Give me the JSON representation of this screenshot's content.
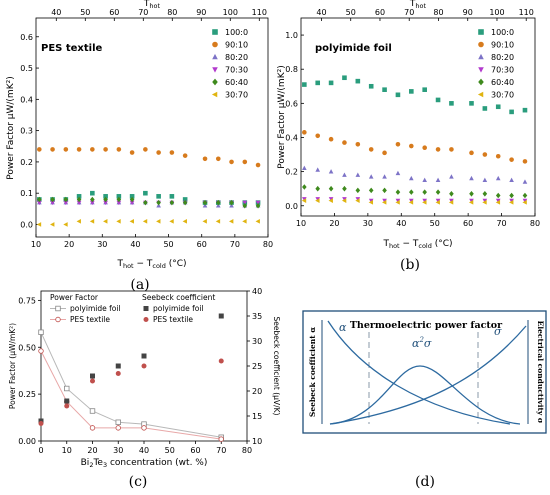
{
  "colors": {
    "s100": "#2a9d7d",
    "s90": "#d77b1d",
    "s80": "#7d73c7",
    "s70": "#b23acd",
    "s60": "#3f8a1d",
    "s30": "#e0b410",
    "pes_line": "#e8a8a8",
    "pes_marker": "#c0504d",
    "pi_line": "#b8b8b8",
    "pi_marker": "#444444",
    "diag_curve": "#2d6aa0",
    "diag_border": "#1f4e79"
  },
  "captions": [
    "(a)",
    "(b)",
    "(c)",
    "(d)"
  ],
  "chart_data": [
    {
      "type": "scatter",
      "panel": "a",
      "title": "PES textile",
      "xlabel": "T_hot − T_cold (°C)",
      "xlabel_parts": {
        "main": "T",
        "sub1": "hot",
        "mid": " − T",
        "sub2": "cold",
        "tail": " (°C)"
      },
      "top_xlabel_parts": {
        "main": "T",
        "sub": "hot"
      },
      "ylabel": "Power Factor μW/(mK²)",
      "xlim": [
        10,
        80
      ],
      "ylim": [
        -0.04,
        0.66
      ],
      "x_ticks": [
        10,
        20,
        30,
        40,
        50,
        60,
        70,
        80
      ],
      "y_ticks": [
        0.0,
        0.1,
        0.2,
        0.3,
        0.4,
        0.5,
        0.6
      ],
      "y_tick_labels": [
        "0.0",
        "0.1",
        "0.2",
        "0.3",
        "0.4",
        "0.5",
        "0.6"
      ],
      "top_ticks": [
        40,
        50,
        60,
        70,
        80,
        90,
        100,
        110
      ],
      "top_xlim": [
        33,
        113
      ],
      "legend_position": "top-right",
      "series": [
        {
          "name": "100:0",
          "marker": "square",
          "color_key": "s100",
          "x": [
            11,
            15,
            19,
            23,
            27,
            31,
            35,
            39,
            43,
            47,
            51,
            55,
            61,
            65,
            69,
            73,
            77
          ],
          "y": [
            0.08,
            0.08,
            0.08,
            0.09,
            0.1,
            0.09,
            0.09,
            0.09,
            0.1,
            0.09,
            0.09,
            0.08,
            0.07,
            0.07,
            0.07,
            0.07,
            0.07
          ]
        },
        {
          "name": "90:10",
          "marker": "circle",
          "color_key": "s90",
          "x": [
            11,
            15,
            19,
            23,
            27,
            31,
            35,
            39,
            43,
            47,
            51,
            55,
            61,
            65,
            69,
            73,
            77
          ],
          "y": [
            0.24,
            0.24,
            0.24,
            0.24,
            0.24,
            0.24,
            0.24,
            0.23,
            0.24,
            0.23,
            0.23,
            0.22,
            0.21,
            0.21,
            0.2,
            0.2,
            0.19
          ]
        },
        {
          "name": "80:20",
          "marker": "triangle-up",
          "color_key": "s80",
          "x": [
            11,
            15,
            19,
            23,
            27,
            31,
            35,
            39,
            43,
            47,
            51,
            55,
            61,
            65,
            69,
            73,
            77
          ],
          "y": [
            0.07,
            0.07,
            0.07,
            0.07,
            0.07,
            0.07,
            0.07,
            0.07,
            0.07,
            0.06,
            0.07,
            0.07,
            0.06,
            0.06,
            0.06,
            0.06,
            0.06
          ]
        },
        {
          "name": "70:30",
          "marker": "triangle-down",
          "color_key": "s70",
          "x": [
            11,
            15,
            19,
            23,
            27,
            31,
            35,
            39,
            43,
            47,
            51,
            55,
            61,
            65,
            69,
            73,
            77
          ],
          "y": [
            0.07,
            0.07,
            0.07,
            0.07,
            0.07,
            0.07,
            0.07,
            0.07,
            0.07,
            0.07,
            0.07,
            0.07,
            0.07,
            0.07,
            0.07,
            0.07,
            0.07
          ]
        },
        {
          "name": "60:40",
          "marker": "diamond",
          "color_key": "s60",
          "x": [
            11,
            15,
            19,
            23,
            27,
            31,
            35,
            39,
            43,
            47,
            51,
            55,
            61,
            65,
            69,
            73,
            77
          ],
          "y": [
            0.08,
            0.08,
            0.08,
            0.08,
            0.08,
            0.08,
            0.08,
            0.08,
            0.07,
            0.07,
            0.07,
            0.07,
            0.07,
            0.07,
            0.07,
            0.06,
            0.06
          ]
        },
        {
          "name": "30:70",
          "marker": "triangle-left",
          "color_key": "s30",
          "x": [
            11,
            15,
            19,
            23,
            27,
            31,
            35,
            39,
            43,
            47,
            51,
            55,
            61,
            65,
            69,
            73,
            77
          ],
          "y": [
            0.0,
            0.0,
            0.0,
            0.01,
            0.01,
            0.01,
            0.01,
            0.01,
            0.01,
            0.01,
            0.01,
            0.01,
            0.01,
            0.01,
            0.01,
            0.01,
            0.01
          ]
        }
      ]
    },
    {
      "type": "scatter",
      "panel": "b",
      "title": "polyimide foil",
      "xlabel": "T_hot − T_cold (°C)",
      "xlabel_parts": {
        "main": "T",
        "sub1": "hot",
        "mid": " − T",
        "sub2": "cold",
        "tail": " (°C)"
      },
      "top_xlabel_parts": {
        "main": "T",
        "sub": "hot"
      },
      "ylabel": "Power Factor μW/(mK²)",
      "xlim": [
        10,
        80
      ],
      "ylim": [
        -0.06,
        1.1
      ],
      "x_ticks": [
        10,
        20,
        30,
        40,
        50,
        60,
        70,
        80
      ],
      "y_ticks": [
        0.0,
        0.2,
        0.4,
        0.6,
        0.8,
        1.0
      ],
      "y_tick_labels": [
        "0.0",
        "0.2",
        "0.4",
        "0.6",
        "0.8",
        "1.0"
      ],
      "top_ticks": [
        40,
        50,
        60,
        70,
        80,
        90,
        100,
        110
      ],
      "top_xlim": [
        33,
        113
      ],
      "legend_position": "top-right",
      "series": [
        {
          "name": "100:0",
          "marker": "square",
          "color_key": "s100",
          "x": [
            11,
            15,
            19,
            23,
            27,
            31,
            35,
            39,
            43,
            47,
            51,
            55,
            61,
            65,
            69,
            73,
            77
          ],
          "y": [
            0.71,
            0.72,
            0.72,
            0.75,
            0.73,
            0.7,
            0.68,
            0.65,
            0.67,
            0.68,
            0.62,
            0.6,
            0.6,
            0.57,
            0.58,
            0.55,
            0.56
          ]
        },
        {
          "name": "90:10",
          "marker": "circle",
          "color_key": "s90",
          "x": [
            11,
            15,
            19,
            23,
            27,
            31,
            35,
            39,
            43,
            47,
            51,
            55,
            61,
            65,
            69,
            73,
            77
          ],
          "y": [
            0.43,
            0.41,
            0.39,
            0.37,
            0.36,
            0.33,
            0.31,
            0.36,
            0.35,
            0.34,
            0.33,
            0.33,
            0.31,
            0.3,
            0.29,
            0.27,
            0.26
          ]
        },
        {
          "name": "80:20",
          "marker": "triangle-up",
          "color_key": "s80",
          "x": [
            11,
            15,
            19,
            23,
            27,
            31,
            35,
            39,
            43,
            47,
            51,
            55,
            61,
            65,
            69,
            73,
            77
          ],
          "y": [
            0.22,
            0.21,
            0.2,
            0.18,
            0.18,
            0.17,
            0.17,
            0.19,
            0.16,
            0.15,
            0.15,
            0.17,
            0.16,
            0.15,
            0.16,
            0.15,
            0.14
          ]
        },
        {
          "name": "70:30",
          "marker": "triangle-down",
          "color_key": "s70",
          "x": [
            11,
            15,
            19,
            23,
            27,
            31,
            35,
            39,
            43,
            47,
            51,
            55,
            61,
            65,
            69,
            73,
            77
          ],
          "y": [
            0.04,
            0.04,
            0.04,
            0.04,
            0.04,
            0.03,
            0.03,
            0.03,
            0.03,
            0.03,
            0.03,
            0.03,
            0.03,
            0.03,
            0.03,
            0.03,
            0.03
          ]
        },
        {
          "name": "60:40",
          "marker": "diamond",
          "color_key": "s60",
          "x": [
            11,
            15,
            19,
            23,
            27,
            31,
            35,
            39,
            43,
            47,
            51,
            55,
            61,
            65,
            69,
            73,
            77
          ],
          "y": [
            0.11,
            0.1,
            0.1,
            0.1,
            0.09,
            0.09,
            0.09,
            0.08,
            0.08,
            0.08,
            0.08,
            0.07,
            0.07,
            0.07,
            0.06,
            0.06,
            0.06
          ]
        },
        {
          "name": "30:70",
          "marker": "triangle-left",
          "color_key": "s30",
          "x": [
            11,
            15,
            19,
            23,
            27,
            31,
            35,
            39,
            43,
            47,
            51,
            55,
            61,
            65,
            69,
            73,
            77
          ],
          "y": [
            0.03,
            0.03,
            0.03,
            0.03,
            0.03,
            0.02,
            0.02,
            0.02,
            0.02,
            0.02,
            0.02,
            0.02,
            0.02,
            0.02,
            0.02,
            0.02,
            0.02
          ]
        }
      ]
    },
    {
      "type": "line",
      "panel": "c",
      "xlabel": "Bi₂Te₃ concentration (wt. %)",
      "xlabel_parts": {
        "pre": "Bi",
        "sub1": "2",
        "mid": "Te",
        "sub2": "3",
        "tail": " concentration (wt. %)"
      },
      "ylabel": "Power Factor (μW/mK²)",
      "y2label": "Seebeck coefficient (μV/K)",
      "xlim": [
        0,
        80
      ],
      "ylim": [
        0,
        0.8
      ],
      "y2lim": [
        10,
        40
      ],
      "x_ticks": [
        0,
        10,
        20,
        30,
        40,
        50,
        60,
        70,
        80
      ],
      "y_ticks": [
        0.0,
        0.25,
        0.5,
        0.75
      ],
      "y_tick_labels": [
        "0.00",
        "0.25",
        "0.50",
        "0.75"
      ],
      "y2_ticks": [
        10,
        15,
        20,
        25,
        30,
        35,
        40
      ],
      "legend_position": "top",
      "legend_headers": [
        "Power Factor",
        "Seebeck coefficient"
      ],
      "series": [
        {
          "name": "polyimide foil",
          "group": "Power Factor",
          "axis": "left",
          "style": "line-open-square",
          "color_key": "pi_line",
          "x": [
            0,
            10,
            20,
            30,
            40,
            70
          ],
          "y": [
            0.58,
            0.28,
            0.16,
            0.1,
            0.09,
            0.02
          ]
        },
        {
          "name": "PES textile",
          "group": "Power Factor",
          "axis": "left",
          "style": "line-open-circle",
          "color_key": "pes_line",
          "x": [
            0,
            10,
            20,
            30,
            40,
            70
          ],
          "y": [
            0.48,
            0.21,
            0.07,
            0.07,
            0.07,
            0.01
          ]
        },
        {
          "name": "polyimide foil",
          "group": "Seebeck coefficient",
          "axis": "right",
          "style": "filled-square",
          "color_key": "pi_marker",
          "x": [
            0,
            10,
            20,
            30,
            40,
            70
          ],
          "y": [
            14,
            18,
            23,
            25,
            27,
            35
          ]
        },
        {
          "name": "PES textile",
          "group": "Seebeck coefficient",
          "axis": "right",
          "style": "filled-circle",
          "color_key": "pes_marker",
          "x": [
            0,
            10,
            20,
            30,
            40,
            70
          ],
          "y": [
            13.5,
            17,
            22,
            23.5,
            25,
            26
          ]
        }
      ]
    }
  ],
  "diagram": {
    "title": "Thermoelectric power factor",
    "left_axis_label": "Seebeck coefficient α",
    "right_axis_label": "Electrical conductivity σ",
    "curve_alpha": "α",
    "curve_sigma": "σ",
    "curve_pf_base": "α",
    "curve_pf_exp": "2",
    "curve_pf_tail": "σ"
  }
}
